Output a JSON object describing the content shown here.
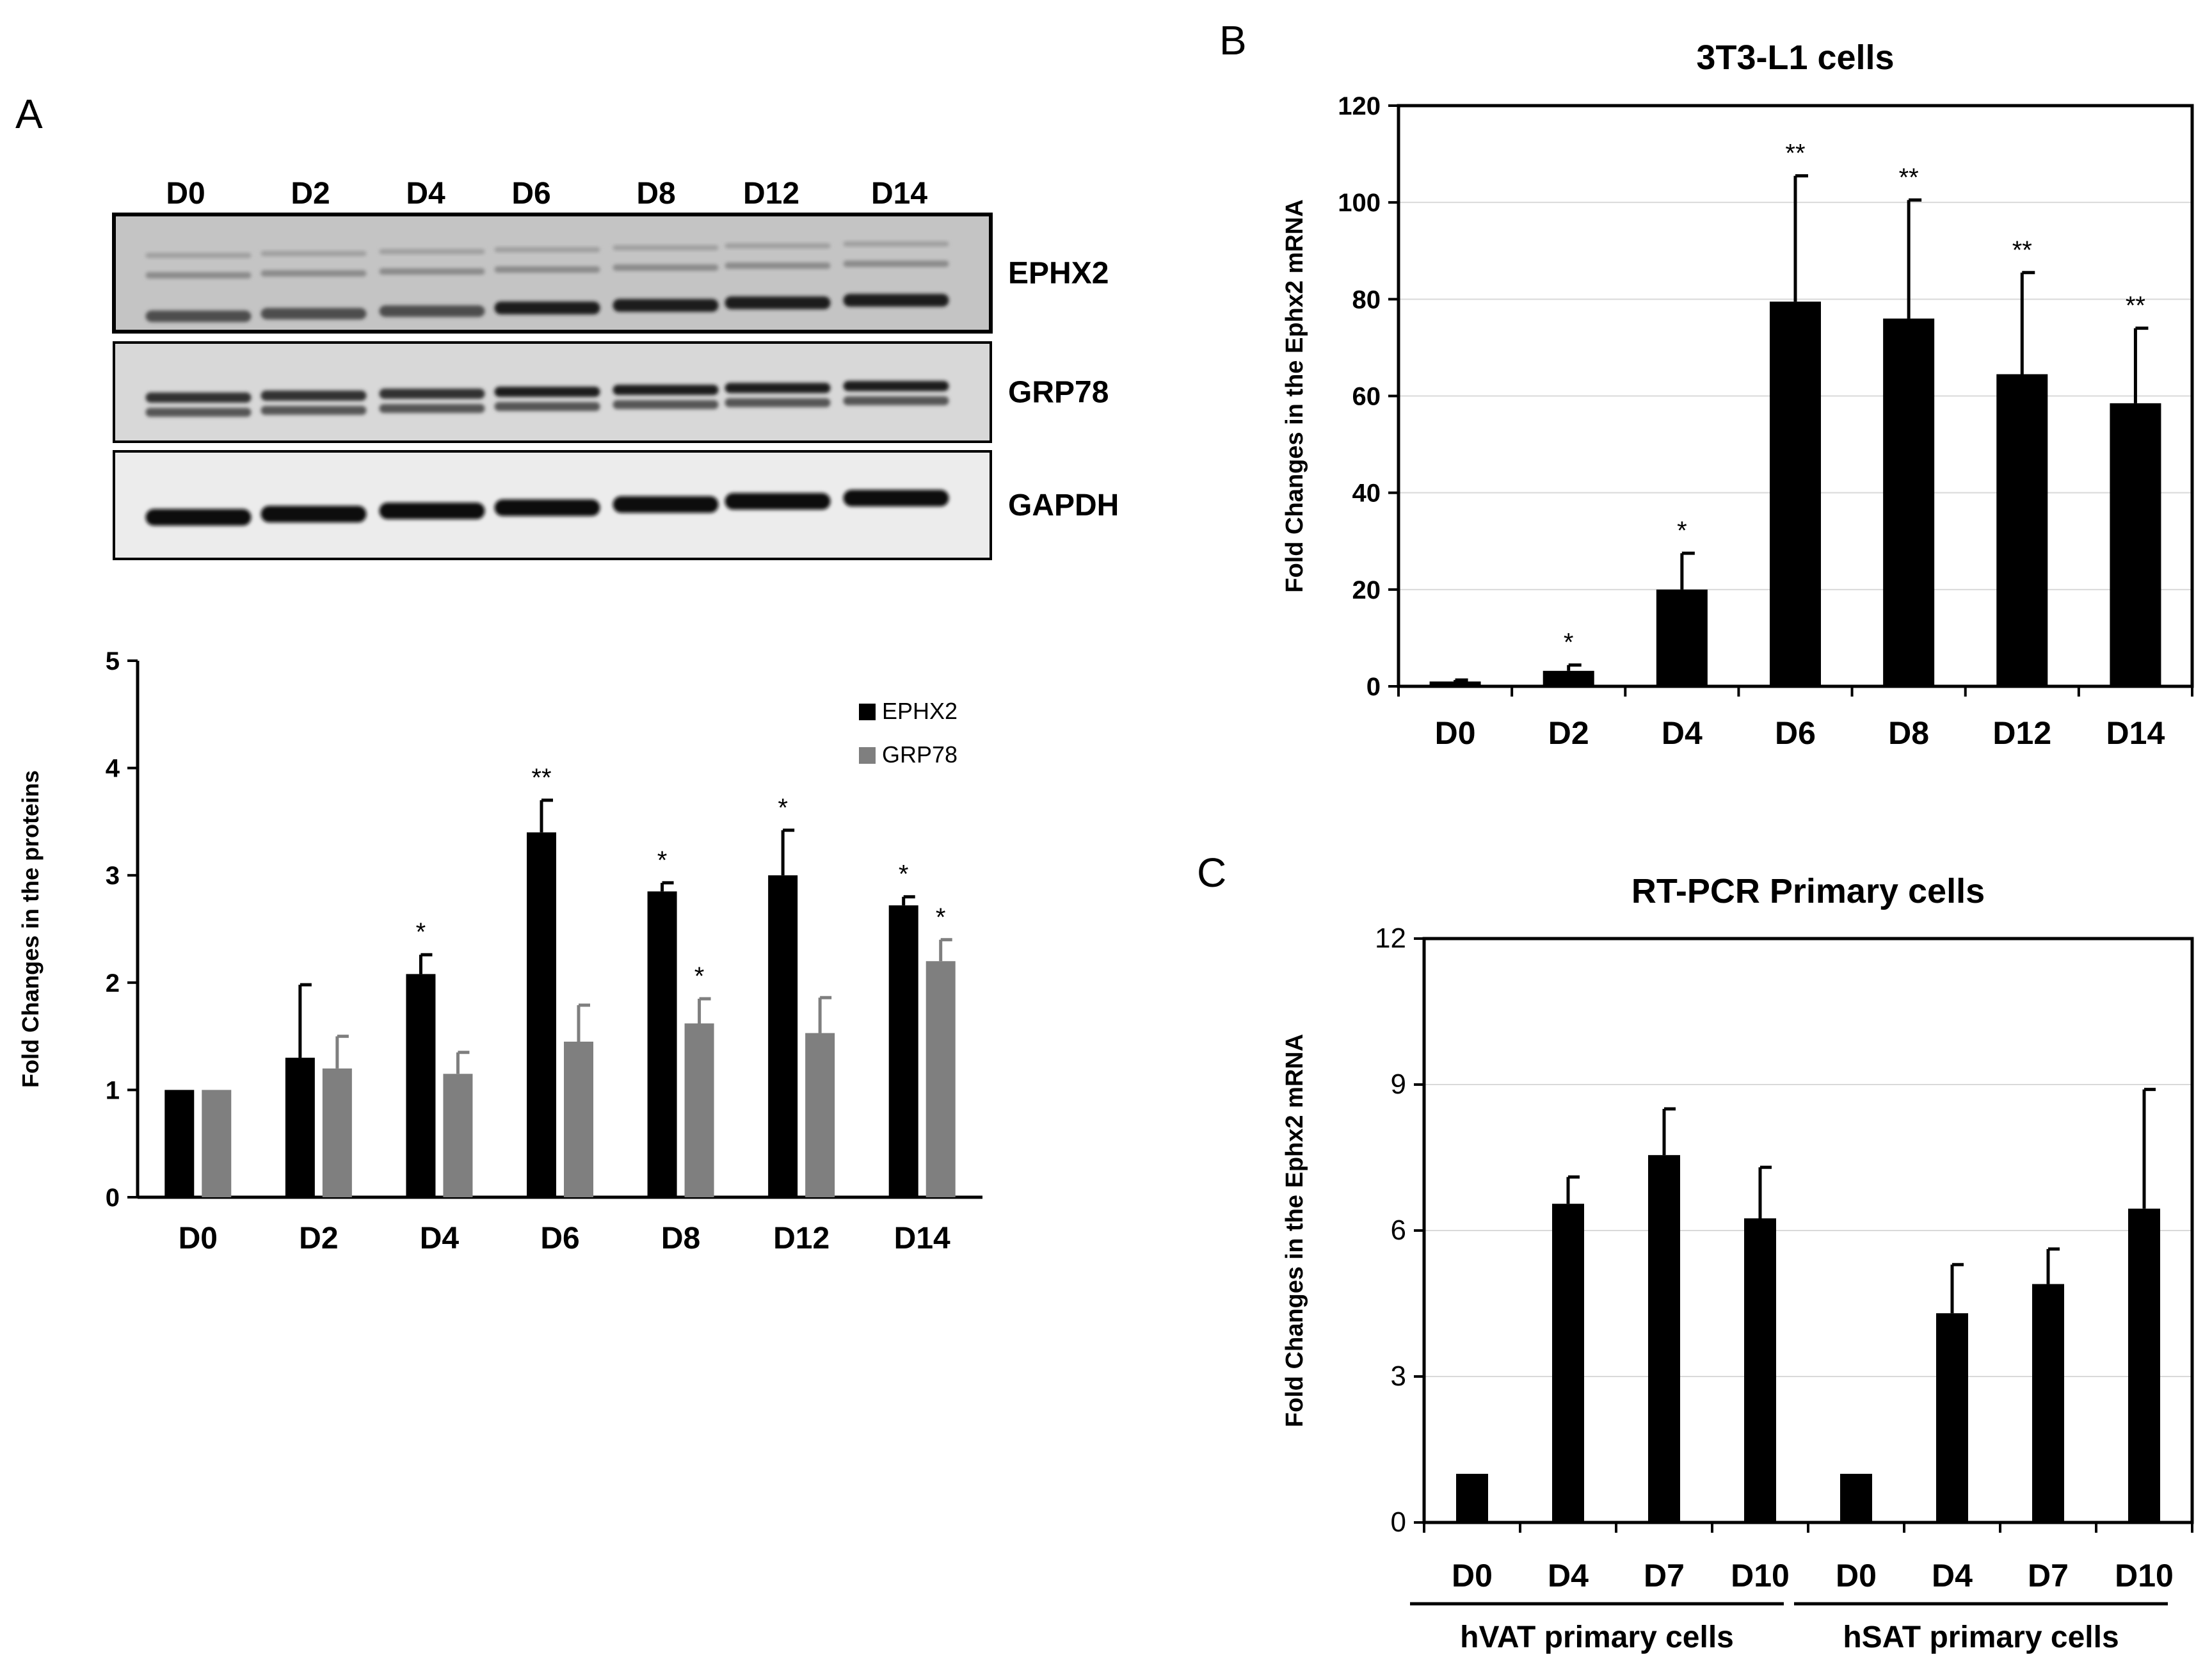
{
  "panels": {
    "A": {
      "letter": "A"
    },
    "B": {
      "letter": "B"
    },
    "C": {
      "letter": "C"
    }
  },
  "blot": {
    "lanes": [
      "D0",
      "D2",
      "D4",
      "D6",
      "D8",
      "D12",
      "D14"
    ],
    "rows": [
      {
        "label": "EPHX2"
      },
      {
        "label": "GRP78"
      },
      {
        "label": "GAPDH"
      }
    ]
  },
  "colors": {
    "ephx2": "#000000",
    "grp78": "#7f7f7f",
    "gridline": "#d9d9d9"
  },
  "chart_data": [
    {
      "id": "A",
      "type": "bar",
      "title": "",
      "xlabel": "",
      "ylabel": "Fold Changes in the proteins",
      "categories": [
        "D0",
        "D2",
        "D4",
        "D6",
        "D8",
        "D12",
        "D14"
      ],
      "ylim": [
        0,
        5
      ],
      "yticks": [
        0,
        1,
        2,
        3,
        4,
        5
      ],
      "grid": false,
      "legend_position": "top-right",
      "series": [
        {
          "name": "EPHX2",
          "color": "#000000",
          "values": [
            1.0,
            1.3,
            2.08,
            3.4,
            2.85,
            3.0,
            2.72
          ],
          "errors": [
            0,
            0.68,
            0.18,
            0.3,
            0.08,
            0.42,
            0.08
          ],
          "annotations": [
            "",
            "",
            "*",
            "**",
            "*",
            "*",
            "*"
          ]
        },
        {
          "name": "GRP78",
          "color": "#7f7f7f",
          "values": [
            1.0,
            1.2,
            1.15,
            1.45,
            1.62,
            1.53,
            2.2
          ],
          "errors": [
            0,
            0.3,
            0.2,
            0.34,
            0.23,
            0.33,
            0.2
          ],
          "annotations": [
            "",
            "",
            "",
            "",
            "*",
            "",
            "*"
          ]
        }
      ]
    },
    {
      "id": "B",
      "type": "bar",
      "title": "3T3-L1 cells",
      "xlabel": "",
      "ylabel": "Fold Changes in the Ephx2 mRNA",
      "categories": [
        "D0",
        "D2",
        "D4",
        "D6",
        "D8",
        "D12",
        "D14"
      ],
      "ylim": [
        0,
        120
      ],
      "yticks": [
        0,
        20,
        40,
        60,
        80,
        100,
        120
      ],
      "grid": true,
      "series": [
        {
          "name": "Ephx2 mRNA",
          "color": "#000000",
          "values": [
            1,
            3.2,
            20,
            79.5,
            76,
            64.5,
            58.5
          ],
          "errors": [
            0.3,
            1.2,
            7.5,
            26,
            24.5,
            21,
            15.5
          ],
          "annotations": [
            "",
            "*",
            "*",
            "**",
            "**",
            "**",
            "**"
          ]
        }
      ]
    },
    {
      "id": "C",
      "type": "bar",
      "title": "RT-PCR Primary cells",
      "xlabel": "",
      "ylabel": "Fold Changes in the Ephx2 mRNA",
      "categories": [
        "D0",
        "D4",
        "D7",
        "D10",
        "D0",
        "D4",
        "D7",
        "D10"
      ],
      "groups": [
        {
          "label": "hVAT primary cells",
          "start": 0,
          "end": 3
        },
        {
          "label": "hSAT primary cells",
          "start": 4,
          "end": 7
        }
      ],
      "ylim": [
        0,
        12
      ],
      "yticks": [
        0,
        3,
        6,
        9,
        12
      ],
      "grid": true,
      "series": [
        {
          "name": "Ephx2 mRNA",
          "color": "#000000",
          "values": [
            1.0,
            6.55,
            7.55,
            6.25,
            1.0,
            4.3,
            4.9,
            6.45
          ],
          "errors": [
            0,
            0.55,
            0.95,
            1.05,
            0,
            1.0,
            0.72,
            2.45
          ],
          "annotations": [
            "",
            "",
            "",
            "",
            "",
            "",
            "",
            ""
          ]
        }
      ]
    }
  ]
}
